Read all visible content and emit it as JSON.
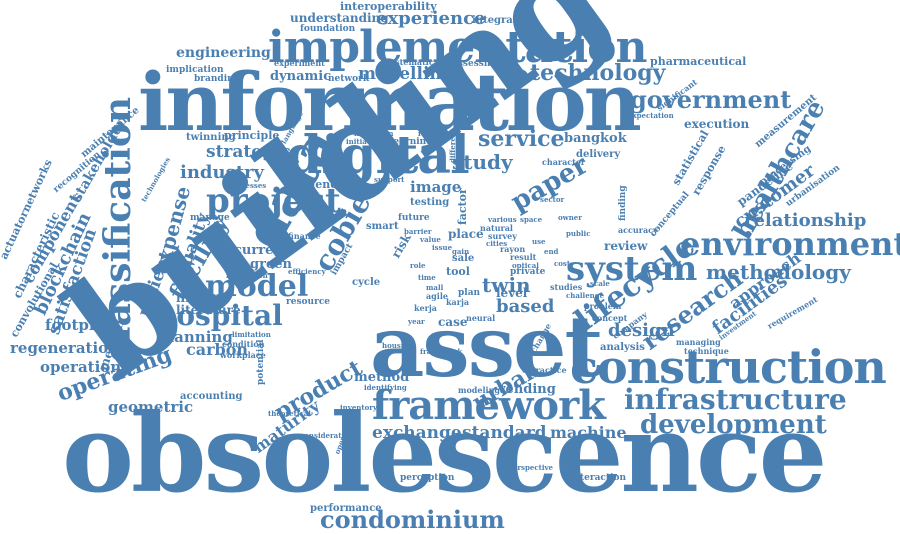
{
  "words": {
    "obsolescence": "obsolescence",
    "building": "building",
    "information": "information",
    "asset": "asset",
    "implementation": "implementation",
    "construction": "construction",
    "digital": "digital",
    "framework": "framework",
    "data": "data",
    "classification": "classification",
    "environment": "environment",
    "system": "system",
    "project": "project",
    "model": "model",
    "hospital": "hospital",
    "lifecycle": "lifecycle",
    "government": "government",
    "infrastructure": "infrastructure",
    "development": "development",
    "condominium": "condominium",
    "technology": "technology",
    "research": "research",
    "healthcare": "healthcare",
    "methodology": "methodology",
    "paper": "paper",
    "service": "service",
    "facility": "facility",
    "cobie": "cobie",
    "urban": "urban",
    "product": "product",
    "operating": "operating",
    "maturity": "maturity",
    "experience": "experience",
    "modelling": "modelling",
    "study": "study",
    "industry": "industry",
    "strategic": "strategic",
    "relationship": "relationship",
    "customer": "customer",
    "blockchain": "blockchain",
    "satisfaction": "satisfaction",
    "component": "component",
    "expense": "expense",
    "quality": "quality",
    "patient": "patient",
    "exchange": "exchange",
    "standard": "standard",
    "machine": "machine",
    "twin": "twin",
    "based": "based",
    "facilities": "facilities",
    "approach": "approach",
    "design": "design",
    "operation": "operation",
    "regeneration": "regeneration",
    "footprint": "footprint",
    "geometric": "geometric",
    "carbon": "carbon",
    "planning": "planning",
    "engineering": "engineering",
    "understanding": "understanding",
    "interoperability": "interoperability",
    "integration": "integration",
    "foundation": "foundation",
    "pharmaceutical": "pharmaceutical",
    "dynamic": "dynamic",
    "bangkok": "bangkok",
    "execution": "execution",
    "statistical": "statistical",
    "response": "response",
    "pandemic": "pandemic",
    "processing": "processing",
    "measurement": "measurement",
    "urbanisation": "urbanisation",
    "maintenance": "maintenance",
    "stakeholder": "stakeholder",
    "recognition": "recognition",
    "actuatornetworks": "actuatornetworks",
    "characteristic": "characteristic",
    "convolutional": "convolutional",
    "medical": "medical",
    "lifespan": "lifespan",
    "literature": "literature",
    "green": "green",
    "current": "current",
    "image": "image",
    "evidence": "evidence",
    "vending": "vending",
    "level": "level",
    "review": "review",
    "performance": "performance",
    "perception": "perception",
    "interaction": "interaction",
    "accounting": "accounting",
    "potential": "potential",
    "method": "method",
    "case": "case",
    "concept": "concept",
    "analysis": "analysis",
    "workplace": "workplace",
    "limitation": "limitation",
    "delivery": "delivery",
    "experiment": "experiment",
    "implication": "implication",
    "branding": "branding",
    "systematic": "systematic",
    "assessment": "assessment",
    "network": "network",
    "twinning": "twinning",
    "principle": "principle",
    "learning": "learning",
    "initiative": "initiative",
    "requirement": "requirement",
    "conceptual": "conceptual",
    "finding": "finding",
    "practice": "practice",
    "modeling": "modeling",
    "future": "future",
    "place": "place",
    "factor": "factor",
    "significant": "significant",
    "expectation": "expectation",
    "manage": "manage",
    "change": "change",
    "managing": "managing",
    "technique": "technique",
    "perspective": "perspective",
    "inventory": "inventory",
    "smart": "smart",
    "cycle": "cycle",
    "testing": "testing",
    "resource": "resource",
    "private": "private",
    "neural": "neural",
    "plan": "plan",
    "tool": "tool",
    "sale": "sale",
    "studies": "studies",
    "problem": "problem",
    "accuracy": "accuracy",
    "revealing": "revealing",
    "support": "support",
    "impact": "impact",
    "company": "company",
    "challenge": "challenge",
    "result": "result",
    "survey": "survey",
    "natural": "natural",
    "optical": "optical",
    "cities": "cities",
    "agile": "agile",
    "various": "various",
    "language": "language",
    "technologies": "technologies",
    "condition": "condition",
    "processes": "processes",
    "finance": "finance",
    "innovation": "innovation",
    "efficiency": "efficiency",
    "risk": "risk",
    "rayon": "rayon",
    "karja": "karja",
    "kerja": "kerja",
    "scale": "scale",
    "operational": "operational",
    "framework_sm": "framework",
    "different": "different",
    "malaysian": "malaysian",
    "character": "character",
    "investment": "investment",
    "theoretical": "theoretical",
    "consideration": "consideration",
    "identifying": "identifying",
    "housing": "housing",
    "gain": "gain",
    "year": "year",
    "role": "role",
    "time": "time",
    "mall": "mall",
    "value": "value",
    "issue": "issue",
    "barrier": "barrier",
    "sector": "sector",
    "owner": "owner",
    "public": "public",
    "space": "space",
    "use": "use",
    "end": "end",
    "cost": "cost"
  }
}
